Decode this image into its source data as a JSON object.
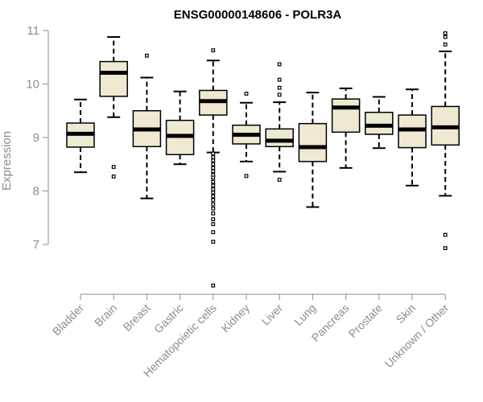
{
  "chart_data": {
    "type": "box",
    "title": "ENSG00000148606 - POLR3A",
    "xlabel": "",
    "ylabel": "Expression",
    "ylim": [
      6,
      11
    ],
    "yticks": [
      7,
      8,
      9,
      10,
      11
    ],
    "colors": {
      "box_fill": "#efe9d2",
      "box_stroke": "#000000",
      "axis": "#8c8c8c",
      "title": "#000000"
    },
    "categories": [
      "Bladder",
      "Brain",
      "Breast",
      "Gastric",
      "Hematopoietic cells",
      "Kidney",
      "Liver",
      "Lung",
      "Pancreas",
      "Prostate",
      "Skin",
      "Unknown / Other"
    ],
    "boxes": [
      {
        "label": "Bladder",
        "whisker_low": 8.35,
        "q1": 8.82,
        "median": 9.07,
        "q3": 9.27,
        "whisker_high": 9.71,
        "outliers": []
      },
      {
        "label": "Brain",
        "whisker_low": 9.38,
        "q1": 9.77,
        "median": 10.21,
        "q3": 10.42,
        "whisker_high": 10.88,
        "outliers": [
          8.45,
          8.27
        ]
      },
      {
        "label": "Breast",
        "whisker_low": 7.86,
        "q1": 8.83,
        "median": 9.15,
        "q3": 9.5,
        "whisker_high": 10.12,
        "outliers": [
          10.53
        ]
      },
      {
        "label": "Gastric",
        "whisker_low": 8.5,
        "q1": 8.68,
        "median": 9.03,
        "q3": 9.32,
        "whisker_high": 9.86,
        "outliers": []
      },
      {
        "label": "Hematopoietic cells",
        "whisker_low": 8.72,
        "q1": 9.42,
        "median": 9.68,
        "q3": 9.88,
        "whisker_high": 10.44,
        "outliers": [
          10.63,
          8.7,
          8.63,
          8.57,
          8.5,
          8.43,
          8.37,
          8.3,
          8.25,
          8.17,
          8.1,
          8.03,
          7.97,
          7.9,
          7.83,
          7.75,
          7.67,
          7.58,
          7.47,
          7.38,
          7.23,
          7.05,
          6.23
        ]
      },
      {
        "label": "Kidney",
        "whisker_low": 8.55,
        "q1": 8.88,
        "median": 9.05,
        "q3": 9.23,
        "whisker_high": 9.65,
        "outliers": [
          9.82,
          8.28
        ]
      },
      {
        "label": "Liver",
        "whisker_low": 8.36,
        "q1": 8.83,
        "median": 8.94,
        "q3": 9.16,
        "whisker_high": 9.66,
        "outliers": [
          10.37,
          10.08,
          9.93,
          9.8,
          8.21
        ]
      },
      {
        "label": "Lung",
        "whisker_low": 7.7,
        "q1": 8.55,
        "median": 8.82,
        "q3": 9.26,
        "whisker_high": 9.84,
        "outliers": []
      },
      {
        "label": "Pancreas",
        "whisker_low": 8.43,
        "q1": 9.1,
        "median": 9.56,
        "q3": 9.72,
        "whisker_high": 9.92,
        "outliers": []
      },
      {
        "label": "Prostate",
        "whisker_low": 8.8,
        "q1": 9.06,
        "median": 9.22,
        "q3": 9.47,
        "whisker_high": 9.76,
        "outliers": []
      },
      {
        "label": "Skin",
        "whisker_low": 8.1,
        "q1": 8.81,
        "median": 9.15,
        "q3": 9.42,
        "whisker_high": 9.9,
        "outliers": []
      },
      {
        "label": "Unknown / Other",
        "whisker_low": 7.91,
        "q1": 8.86,
        "median": 9.19,
        "q3": 9.58,
        "whisker_high": 10.61,
        "outliers": [
          10.95,
          10.88,
          10.74,
          7.18,
          6.93
        ]
      }
    ]
  }
}
